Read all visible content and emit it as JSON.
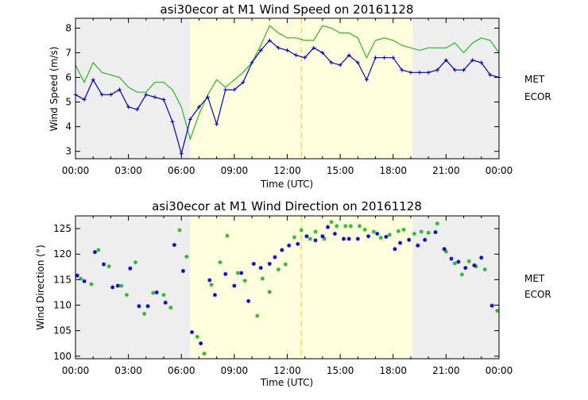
{
  "colors": {
    "met": "#22bb22",
    "ecor": "#0000cc",
    "night_shade": "#eeeeee",
    "day_shade": "#ffffdd",
    "solar_noon": "#ffcc33"
  },
  "chart_data": [
    {
      "type": "line",
      "title": "asi30ecor at M1 Wind Speed on 20161128",
      "xlabel": "Time (UTC)",
      "ylabel": "Wind Speed (m/s)",
      "xlim": [
        0,
        24
      ],
      "ylim": [
        2.7,
        8.4
      ],
      "x_ticks": [
        0,
        3,
        6,
        9,
        12,
        15,
        18,
        21,
        24
      ],
      "x_tick_labels": [
        "00:00",
        "03:00",
        "06:00",
        "09:00",
        "12:00",
        "15:00",
        "18:00",
        "21:00",
        "00:00"
      ],
      "y_ticks": [
        3,
        4,
        5,
        6,
        7,
        8
      ],
      "y_tick_labels": [
        "3",
        "4",
        "5",
        "6",
        "7",
        "8"
      ],
      "legend": [
        "MET",
        "ECOR"
      ],
      "shading": {
        "day_start": 6.5,
        "day_end": 19.1,
        "solar_noon": 12.8
      },
      "series": [
        {
          "name": "MET",
          "color_key": "met",
          "x": [
            0,
            0.5,
            1,
            1.5,
            2,
            2.5,
            3,
            3.5,
            4,
            4.5,
            5,
            5.5,
            6,
            6.5,
            7,
            7.5,
            8,
            8.5,
            9,
            9.5,
            10,
            10.5,
            11,
            11.5,
            12,
            12.5,
            13,
            13.5,
            14,
            14.5,
            15,
            15.5,
            16,
            16.5,
            17,
            17.5,
            18,
            18.5,
            19,
            19.5,
            20,
            20.5,
            21,
            21.5,
            22,
            22.5,
            23,
            23.5,
            24
          ],
          "values": [
            6.5,
            5.8,
            6.6,
            6.2,
            6.1,
            6.0,
            5.6,
            5.4,
            5.4,
            5.8,
            5.8,
            5.5,
            4.8,
            3.5,
            4.5,
            5.3,
            5.9,
            5.6,
            5.9,
            6.2,
            6.6,
            7.3,
            8.1,
            7.8,
            7.6,
            7.6,
            7.5,
            7.5,
            8.1,
            8.0,
            7.8,
            7.8,
            7.6,
            6.8,
            7.5,
            7.6,
            7.5,
            7.3,
            7.2,
            7.1,
            7.2,
            7.2,
            7.2,
            7.4,
            7.0,
            7.4,
            7.6,
            7.5,
            7.0
          ]
        },
        {
          "name": "ECOR",
          "color_key": "ecor",
          "x": [
            0,
            0.5,
            1,
            1.5,
            2,
            2.5,
            3,
            3.5,
            4,
            4.5,
            5,
            5.5,
            6,
            6.5,
            7,
            7.5,
            8,
            8.5,
            9,
            9.5,
            10,
            10.5,
            11,
            11.5,
            12,
            12.5,
            13,
            13.5,
            14,
            14.5,
            15,
            15.5,
            16,
            16.5,
            17,
            17.5,
            18,
            18.5,
            19,
            19.5,
            20,
            20.5,
            21,
            21.5,
            22,
            22.5,
            23,
            23.5,
            24
          ],
          "values": [
            5.3,
            5.1,
            5.9,
            5.3,
            5.3,
            5.5,
            4.8,
            4.7,
            5.3,
            5.2,
            5.1,
            4.2,
            2.9,
            4.3,
            4.8,
            5.2,
            4.1,
            5.5,
            5.5,
            5.8,
            6.6,
            7.1,
            7.5,
            7.2,
            7.1,
            6.9,
            6.8,
            7.2,
            7.0,
            6.6,
            6.5,
            6.9,
            6.6,
            5.9,
            6.8,
            6.8,
            6.8,
            6.3,
            6.2,
            6.2,
            6.2,
            6.3,
            6.7,
            6.3,
            6.3,
            6.7,
            6.6,
            6.1,
            6.0
          ]
        }
      ]
    },
    {
      "type": "scatter",
      "title": "asi30ecor at M1 Wind Direction on 20161128",
      "xlabel": "Time (UTC)",
      "ylabel": "Wind Direction (°)",
      "xlim": [
        0,
        24
      ],
      "ylim": [
        99.5,
        127.5
      ],
      "x_ticks": [
        0,
        3,
        6,
        9,
        12,
        15,
        18,
        21,
        24
      ],
      "x_tick_labels": [
        "00:00",
        "03:00",
        "06:00",
        "09:00",
        "12:00",
        "15:00",
        "18:00",
        "21:00",
        "00:00"
      ],
      "y_ticks": [
        100,
        105,
        110,
        115,
        120,
        125
      ],
      "y_tick_labels": [
        "100",
        "105",
        "110",
        "115",
        "120",
        "125"
      ],
      "legend": [
        "MET",
        "ECOR"
      ],
      "shading": {
        "day_start": 6.5,
        "day_end": 19.1,
        "solar_noon": 12.8
      },
      "series": [
        {
          "name": "MET",
          "color_key": "met",
          "x": [
            0.3,
            0.9,
            1.3,
            1.9,
            2.6,
            2.9,
            3.4,
            3.9,
            4.4,
            5.0,
            5.4,
            5.9,
            6.3,
            6.9,
            7.3,
            7.7,
            8.2,
            8.6,
            9.2,
            9.6,
            10.3,
            10.6,
            11.0,
            11.5,
            11.9,
            12.4,
            12.8,
            13.3,
            13.6,
            14.1,
            14.5,
            14.8,
            15.3,
            15.6,
            16.1,
            16.4,
            16.9,
            17.3,
            17.8,
            18.3,
            18.6,
            19.2,
            19.6,
            20.0,
            20.5,
            21.0,
            21.5,
            21.9,
            22.3,
            22.7,
            23.2,
            23.9
          ],
          "values": [
            115.2,
            114.1,
            120.8,
            117.6,
            113.8,
            112.0,
            118.4,
            108.3,
            112.4,
            112.0,
            109.5,
            124.7,
            119.5,
            103.8,
            100.5,
            114.0,
            118.4,
            123.6,
            116.3,
            114.8,
            107.9,
            115.2,
            112.6,
            117.0,
            118.0,
            123.3,
            124.7,
            123.0,
            124.4,
            123.0,
            126.3,
            125.5,
            125.5,
            125.5,
            125.5,
            124.8,
            124.4,
            123.2,
            123.8,
            124.5,
            124.8,
            124.0,
            124.4,
            124.2,
            126.0,
            120.5,
            118.2,
            116.0,
            118.6,
            117.6,
            117.0,
            108.9
          ]
        },
        {
          "name": "ECOR",
          "color_key": "ecor",
          "x": [
            0.1,
            0.5,
            1.1,
            1.6,
            2.1,
            2.4,
            3.1,
            3.6,
            4.1,
            4.6,
            5.1,
            5.6,
            6.1,
            6.6,
            7.1,
            7.6,
            7.9,
            8.5,
            9.0,
            9.4,
            9.8,
            10.1,
            10.5,
            11.0,
            11.3,
            11.7,
            12.1,
            12.6,
            13.1,
            13.6,
            14.0,
            14.3,
            14.7,
            15.2,
            15.5,
            16.0,
            16.6,
            17.1,
            17.6,
            18.1,
            18.4,
            18.9,
            19.4,
            19.8,
            20.4,
            20.9,
            21.3,
            21.7,
            22.1,
            22.6,
            23.0,
            23.6
          ],
          "values": [
            115.8,
            114.7,
            120.4,
            118.0,
            113.5,
            113.8,
            117.2,
            109.8,
            109.8,
            112.5,
            110.5,
            121.8,
            116.7,
            104.7,
            102.5,
            114.9,
            112.0,
            116.1,
            113.8,
            116.3,
            110.8,
            118.1,
            117.3,
            118.1,
            119.4,
            120.8,
            121.7,
            122.0,
            123.5,
            122.7,
            123.5,
            125.3,
            124.0,
            123.0,
            123.0,
            123.0,
            123.5,
            124.0,
            123.4,
            121.0,
            122.2,
            122.8,
            121.7,
            122.8,
            124.3,
            121.0,
            119.1,
            118.5,
            117.3,
            117.8,
            119.3,
            109.9
          ]
        }
      ]
    }
  ]
}
